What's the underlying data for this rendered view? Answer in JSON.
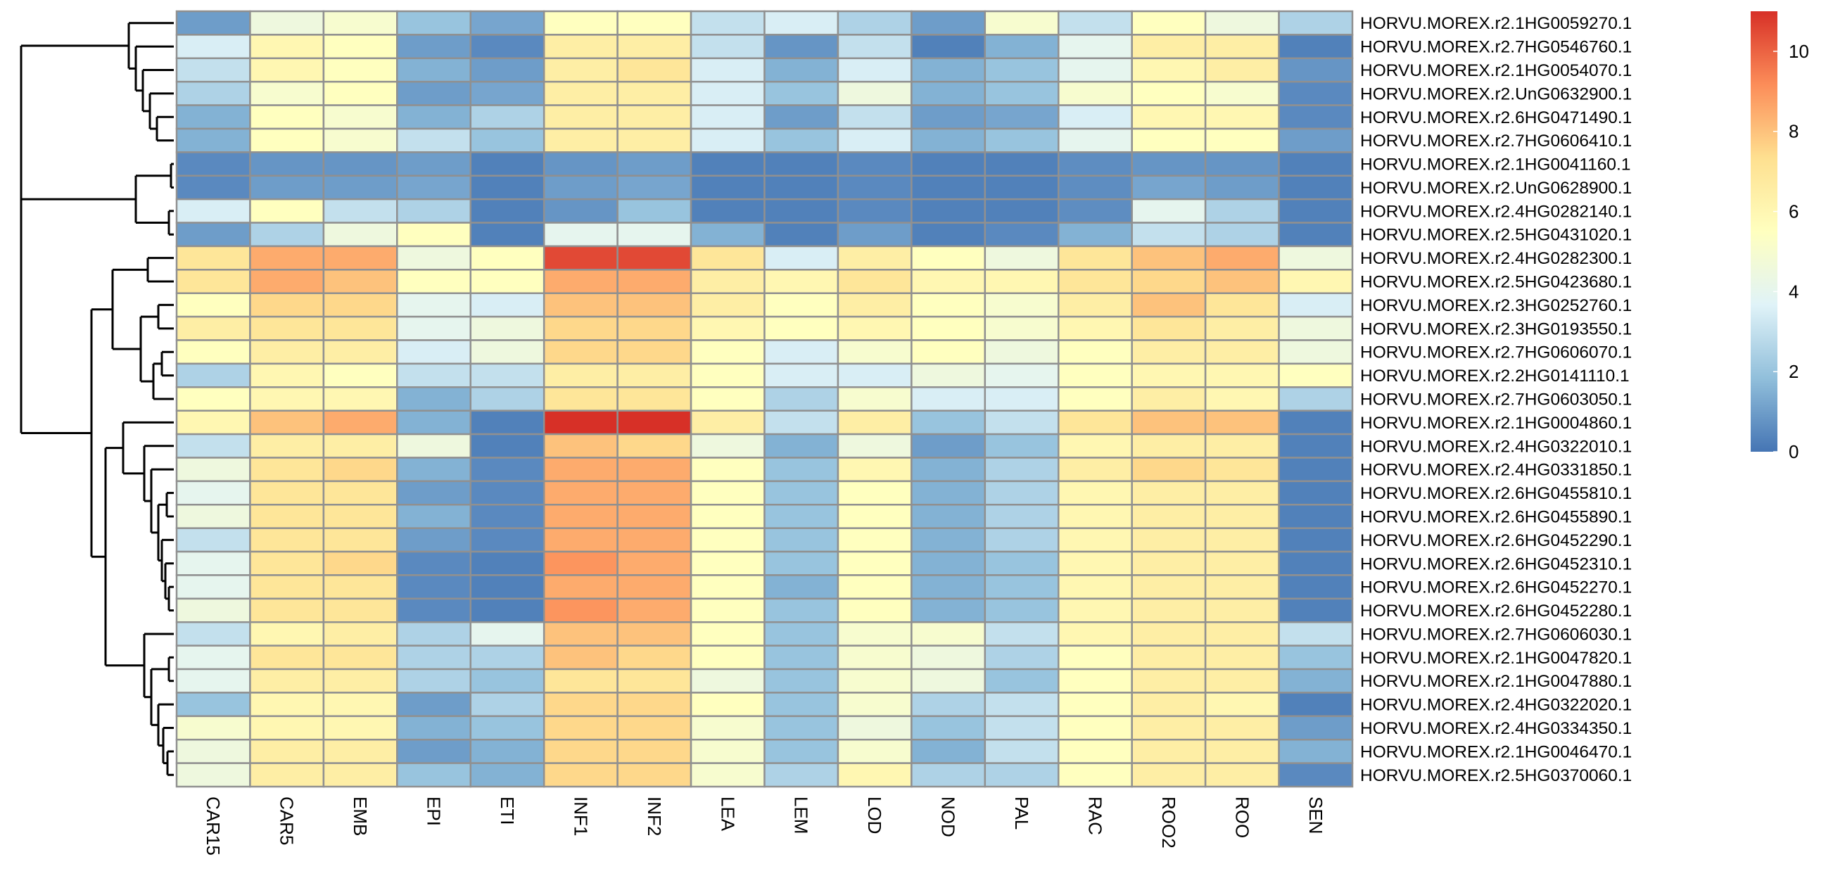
{
  "chart_data": {
    "type": "heatmap",
    "title": "",
    "xlabel": "",
    "ylabel": "",
    "columns": [
      "CAR15",
      "CAR5",
      "EMB",
      "EPI",
      "ETI",
      "INF1",
      "INF2",
      "LEA",
      "LEM",
      "LOD",
      "NOD",
      "PAL",
      "RAC",
      "ROO2",
      "ROO",
      "SEN"
    ],
    "rows": [
      "HORVU.MOREX.r2.1HG0059270.1",
      "HORVU.MOREX.r2.7HG0546760.1",
      "HORVU.MOREX.r2.1HG0054070.1",
      "HORVU.MOREX.r2.UnG0632900.1",
      "HORVU.MOREX.r2.6HG0471490.1",
      "HORVU.MOREX.r2.7HG0606410.1",
      "HORVU.MOREX.r2.1HG0041160.1",
      "HORVU.MOREX.r2.UnG0628900.1",
      "HORVU.MOREX.r2.4HG0282140.1",
      "HORVU.MOREX.r2.5HG0431020.1",
      "HORVU.MOREX.r2.4HG0282300.1",
      "HORVU.MOREX.r2.5HG0423680.1",
      "HORVU.MOREX.r2.3HG0252760.1",
      "HORVU.MOREX.r2.3HG0193550.1",
      "HORVU.MOREX.r2.7HG0606070.1",
      "HORVU.MOREX.r2.2HG0141110.1",
      "HORVU.MOREX.r2.7HG0603050.1",
      "HORVU.MOREX.r2.1HG0004860.1",
      "HORVU.MOREX.r2.4HG0322010.1",
      "HORVU.MOREX.r2.4HG0331850.1",
      "HORVU.MOREX.r2.6HG0455810.1",
      "HORVU.MOREX.r2.6HG0455890.1",
      "HORVU.MOREX.r2.6HG0452290.1",
      "HORVU.MOREX.r2.6HG0452310.1",
      "HORVU.MOREX.r2.6HG0452270.1",
      "HORVU.MOREX.r2.6HG0452280.1",
      "HORVU.MOREX.r2.7HG0606030.1",
      "HORVU.MOREX.r2.1HG0047820.1",
      "HORVU.MOREX.r2.1HG0047880.1",
      "HORVU.MOREX.r2.4HG0322020.1",
      "HORVU.MOREX.r2.4HG0334350.1",
      "HORVU.MOREX.r2.1HG0046470.1",
      "HORVU.MOREX.r2.5HG0370060.1"
    ],
    "values": [
      [
        1.0,
        4.5,
        5.0,
        2.0,
        1.2,
        5.5,
        5.5,
        3.0,
        3.5,
        2.5,
        1.0,
        5.0,
        3.0,
        5.5,
        4.5,
        2.5
      ],
      [
        3.5,
        6.0,
        5.5,
        1.0,
        0.5,
        6.5,
        6.5,
        3.0,
        0.8,
        3.0,
        0.3,
        1.5,
        4.0,
        6.5,
        6.5,
        0.3
      ],
      [
        3.0,
        6.0,
        5.5,
        1.5,
        1.0,
        6.5,
        7.0,
        3.5,
        1.5,
        3.5,
        1.5,
        2.0,
        4.0,
        6.0,
        6.5,
        0.8
      ],
      [
        2.5,
        5.0,
        5.5,
        1.0,
        1.2,
        6.5,
        6.5,
        3.5,
        2.0,
        4.5,
        1.5,
        2.0,
        5.0,
        5.5,
        5.0,
        0.5
      ],
      [
        1.5,
        5.5,
        5.0,
        1.5,
        2.5,
        6.5,
        6.5,
        3.5,
        1.0,
        3.0,
        1.0,
        1.2,
        3.5,
        6.0,
        6.0,
        0.5
      ],
      [
        1.5,
        5.5,
        5.0,
        3.0,
        2.0,
        6.5,
        6.5,
        3.5,
        2.0,
        3.5,
        1.5,
        2.0,
        4.0,
        5.5,
        5.5,
        1.0
      ],
      [
        0.5,
        0.8,
        0.8,
        1.0,
        0.3,
        0.8,
        1.0,
        0.3,
        0.3,
        0.5,
        0.3,
        0.3,
        0.6,
        0.8,
        0.8,
        0.3
      ],
      [
        0.5,
        1.0,
        1.0,
        1.2,
        0.3,
        1.0,
        1.2,
        0.3,
        0.3,
        0.5,
        0.3,
        0.3,
        0.6,
        1.2,
        1.0,
        0.3
      ],
      [
        3.5,
        5.5,
        3.0,
        2.5,
        0.3,
        0.8,
        2.0,
        0.3,
        0.3,
        0.5,
        0.3,
        0.3,
        0.6,
        4.0,
        2.5,
        0.3
      ],
      [
        1.0,
        2.5,
        4.5,
        5.5,
        0.3,
        4.0,
        4.0,
        1.5,
        0.3,
        1.0,
        0.3,
        0.5,
        1.5,
        3.0,
        2.5,
        0.3
      ],
      [
        7.0,
        8.5,
        8.5,
        4.5,
        5.5,
        10.5,
        10.5,
        7.0,
        3.5,
        6.5,
        5.5,
        4.5,
        7.0,
        8.0,
        8.5,
        4.5
      ],
      [
        7.0,
        8.5,
        8.0,
        5.5,
        5.5,
        8.5,
        8.5,
        6.5,
        6.0,
        7.0,
        6.0,
        6.0,
        7.0,
        7.5,
        8.0,
        6.0
      ],
      [
        5.5,
        7.5,
        7.5,
        4.0,
        3.5,
        8.0,
        8.0,
        6.5,
        5.5,
        6.5,
        5.5,
        5.0,
        6.5,
        8.0,
        7.0,
        3.5
      ],
      [
        6.5,
        7.0,
        7.0,
        4.0,
        4.5,
        7.5,
        7.5,
        6.0,
        5.5,
        6.0,
        5.5,
        5.0,
        6.0,
        7.0,
        6.5,
        4.5
      ],
      [
        5.5,
        6.5,
        6.5,
        3.5,
        4.5,
        7.5,
        7.5,
        5.5,
        3.5,
        5.0,
        5.5,
        4.5,
        5.5,
        6.5,
        6.5,
        4.5
      ],
      [
        2.5,
        6.0,
        5.5,
        3.0,
        3.0,
        6.5,
        6.5,
        5.5,
        3.5,
        3.5,
        4.5,
        4.0,
        5.5,
        6.0,
        6.0,
        5.5
      ],
      [
        5.5,
        6.0,
        6.0,
        1.5,
        2.5,
        7.0,
        7.0,
        5.5,
        2.5,
        5.0,
        3.5,
        3.5,
        5.5,
        6.5,
        6.0,
        2.5
      ],
      [
        6.0,
        8.0,
        8.5,
        1.5,
        0.3,
        11.0,
        11.0,
        6.5,
        3.0,
        6.5,
        2.0,
        3.0,
        7.0,
        8.0,
        8.0,
        0.3
      ],
      [
        3.0,
        6.5,
        6.5,
        4.5,
        0.3,
        8.0,
        7.5,
        4.5,
        1.5,
        4.5,
        1.0,
        2.0,
        6.0,
        6.5,
        6.5,
        0.3
      ],
      [
        4.5,
        7.0,
        7.5,
        1.5,
        0.5,
        8.5,
        8.5,
        5.5,
        2.0,
        6.0,
        1.5,
        2.5,
        6.5,
        7.5,
        7.0,
        0.3
      ],
      [
        4.0,
        7.0,
        7.0,
        1.0,
        0.5,
        8.5,
        8.5,
        5.5,
        2.0,
        5.5,
        1.5,
        2.5,
        6.0,
        6.5,
        6.5,
        0.3
      ],
      [
        4.5,
        7.0,
        7.0,
        1.5,
        0.5,
        8.5,
        8.5,
        5.5,
        2.0,
        5.5,
        1.5,
        2.5,
        6.0,
        6.5,
        6.5,
        0.3
      ],
      [
        3.0,
        7.0,
        7.0,
        1.0,
        0.5,
        8.5,
        8.5,
        5.5,
        2.0,
        5.5,
        1.5,
        2.5,
        6.0,
        6.5,
        6.5,
        0.3
      ],
      [
        4.0,
        7.0,
        7.5,
        0.5,
        0.3,
        9.0,
        8.5,
        5.5,
        2.0,
        5.5,
        1.5,
        2.0,
        6.0,
        6.5,
        6.5,
        0.3
      ],
      [
        4.0,
        7.0,
        7.0,
        0.5,
        0.3,
        8.5,
        8.5,
        5.5,
        1.5,
        5.5,
        1.5,
        2.0,
        6.0,
        6.5,
        6.5,
        0.3
      ],
      [
        4.5,
        7.0,
        7.0,
        0.5,
        0.3,
        9.0,
        8.5,
        5.5,
        2.0,
        5.5,
        1.5,
        2.0,
        6.0,
        6.5,
        6.5,
        0.3
      ],
      [
        3.0,
        6.0,
        6.5,
        2.5,
        4.0,
        8.0,
        8.0,
        5.5,
        2.0,
        5.0,
        5.0,
        3.0,
        6.0,
        6.5,
        6.5,
        3.0
      ],
      [
        4.0,
        7.0,
        7.0,
        2.5,
        2.5,
        8.0,
        7.5,
        5.5,
        2.0,
        5.0,
        4.5,
        2.5,
        5.5,
        6.5,
        6.5,
        2.0
      ],
      [
        4.0,
        6.5,
        6.5,
        2.5,
        2.0,
        7.0,
        7.0,
        4.5,
        2.0,
        5.0,
        4.5,
        2.0,
        5.5,
        6.5,
        6.5,
        1.5
      ],
      [
        2.0,
        6.0,
        6.0,
        1.0,
        2.5,
        7.5,
        7.5,
        5.5,
        2.0,
        5.0,
        2.5,
        3.0,
        5.5,
        6.5,
        6.0,
        0.3
      ],
      [
        5.0,
        6.0,
        6.0,
        1.5,
        2.0,
        7.5,
        7.5,
        5.0,
        2.0,
        4.5,
        2.0,
        3.0,
        5.5,
        6.5,
        6.5,
        1.0
      ],
      [
        4.5,
        6.5,
        6.5,
        1.0,
        1.5,
        7.5,
        7.5,
        5.0,
        2.0,
        5.0,
        1.5,
        3.0,
        5.5,
        6.5,
        6.5,
        1.5
      ],
      [
        4.5,
        6.5,
        6.5,
        2.0,
        1.5,
        7.5,
        7.5,
        5.0,
        2.5,
        6.0,
        2.5,
        2.5,
        5.5,
        6.5,
        6.5,
        0.5
      ]
    ],
    "color_scale": {
      "min": 0,
      "max": 11,
      "colors": [
        "#4575b4",
        "#91bfdb",
        "#e0f3f8",
        "#ffffbf",
        "#fee090",
        "#fc8d59",
        "#d73027"
      ],
      "ticks": [
        "0",
        "2",
        "4",
        "6",
        "8",
        "10"
      ]
    },
    "dendrogram": "rows",
    "cell_border_color": "#909090",
    "legend_placement": "right"
  }
}
